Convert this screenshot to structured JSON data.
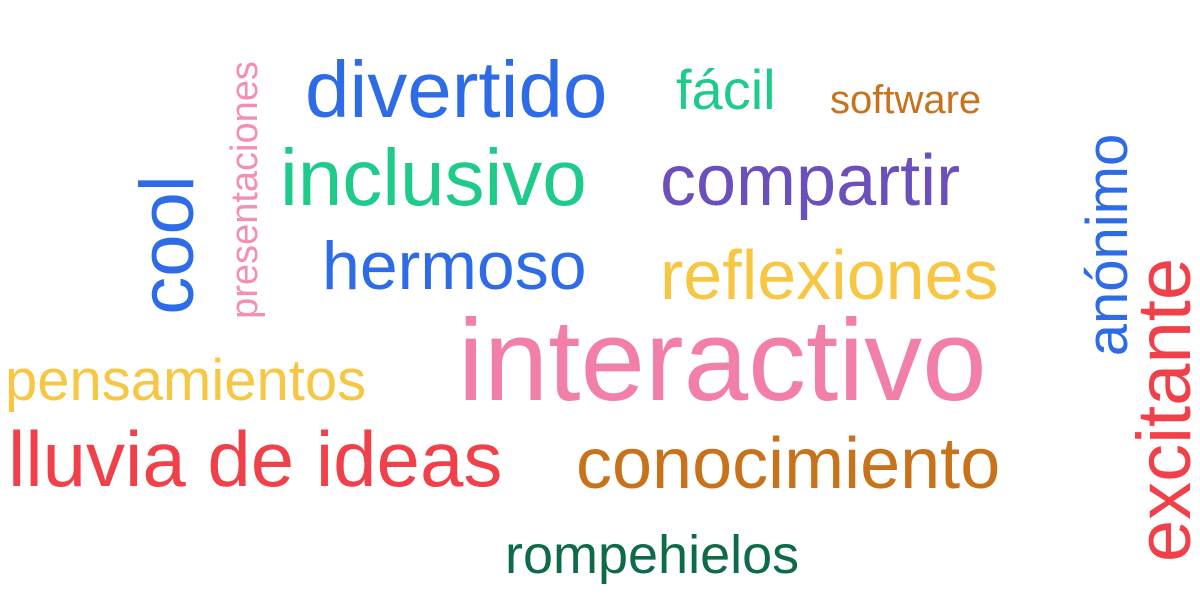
{
  "word_cloud": {
    "words": [
      {
        "id": "divertido",
        "text": "divertido",
        "color": "#2E6BE6"
      },
      {
        "id": "facil",
        "text": "fácil",
        "color": "#1FCB8A"
      },
      {
        "id": "software",
        "text": "software",
        "color": "#C8731B"
      },
      {
        "id": "presentaciones",
        "text": "presentaciones",
        "color": "#F48FB1"
      },
      {
        "id": "inclusivo",
        "text": "inclusivo",
        "color": "#1FCB8A"
      },
      {
        "id": "compartir",
        "text": "compartir",
        "color": "#6B4FBB"
      },
      {
        "id": "cool",
        "text": "cool",
        "color": "#2E6BE6"
      },
      {
        "id": "anonimo",
        "text": "anónimo",
        "color": "#2E6BE6"
      },
      {
        "id": "hermoso",
        "text": "hermoso",
        "color": "#2E6BE6"
      },
      {
        "id": "reflexiones",
        "text": "reflexiones",
        "color": "#F7C743"
      },
      {
        "id": "excitante",
        "text": "excitante",
        "color": "#F0414B"
      },
      {
        "id": "interactivo",
        "text": "interactivo",
        "color": "#F27FAA"
      },
      {
        "id": "pensamientos",
        "text": "pensamientos",
        "color": "#F7C743"
      },
      {
        "id": "lluvia-de-ideas",
        "text": "lluvia de ideas",
        "color": "#F0414B"
      },
      {
        "id": "conocimiento",
        "text": "conocimiento",
        "color": "#C8731B"
      },
      {
        "id": "rompehielos",
        "text": "rompehielos",
        "color": "#0E6B47"
      }
    ]
  }
}
